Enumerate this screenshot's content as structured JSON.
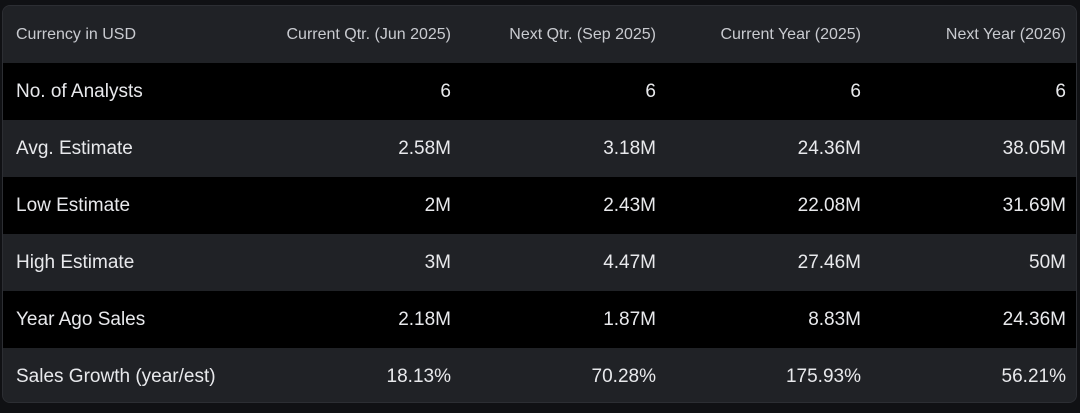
{
  "table": {
    "headers": [
      "Currency in USD",
      "Current Qtr. (Jun 2025)",
      "Next Qtr. (Sep 2025)",
      "Current Year (2025)",
      "Next Year (2026)"
    ],
    "rows": [
      {
        "label": "No. of Analysts",
        "values": [
          "6",
          "6",
          "6",
          "6"
        ]
      },
      {
        "label": "Avg. Estimate",
        "values": [
          "2.58M",
          "3.18M",
          "24.36M",
          "38.05M"
        ]
      },
      {
        "label": "Low Estimate",
        "values": [
          "2M",
          "2.43M",
          "22.08M",
          "31.69M"
        ]
      },
      {
        "label": "High Estimate",
        "values": [
          "3M",
          "4.47M",
          "27.46M",
          "50M"
        ]
      },
      {
        "label": "Year Ago Sales",
        "values": [
          "2.18M",
          "1.87M",
          "8.83M",
          "24.36M"
        ]
      },
      {
        "label": "Sales Growth (year/est)",
        "values": [
          "18.13%",
          "70.28%",
          "175.93%",
          "56.21%"
        ]
      }
    ]
  },
  "colors": {
    "background": "#101114",
    "header_bg": "#202226",
    "row_dark": "#000000",
    "row_light": "#202226",
    "text": "#e8e9ec",
    "header_text": "#c9cbd0"
  }
}
